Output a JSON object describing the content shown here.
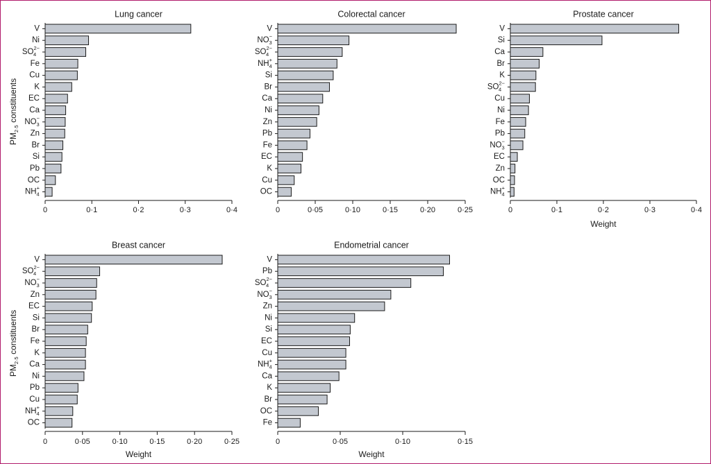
{
  "axis_label_y": "PM2·5 constituents",
  "chart_data": [
    {
      "type": "bar",
      "orientation": "horizontal",
      "title": "Lung cancer",
      "categories": [
        "V",
        "Ni",
        "SO₄²⁻",
        "Fe",
        "Cu",
        "K",
        "EC",
        "Ca",
        "NO₃⁻",
        "Zn",
        "Br",
        "Si",
        "Pb",
        "OC",
        "NH₄⁺"
      ],
      "values": [
        0.312,
        0.093,
        0.087,
        0.07,
        0.069,
        0.057,
        0.048,
        0.044,
        0.043,
        0.042,
        0.038,
        0.036,
        0.034,
        0.022,
        0.015
      ],
      "xlim": [
        0,
        0.4
      ],
      "xticks": [
        "0",
        "0·1",
        "0·2",
        "0·3",
        "0·4"
      ],
      "xlabel": "",
      "ylabel": "PM2·5 constituents"
    },
    {
      "type": "bar",
      "orientation": "horizontal",
      "title": "Colorectal cancer",
      "categories": [
        "V",
        "NO₃⁻",
        "SO₄²⁻",
        "NH₄⁺",
        "Si",
        "Br",
        "Ca",
        "Ni",
        "Zn",
        "Pb",
        "Fe",
        "EC",
        "K",
        "Cu",
        "OC"
      ],
      "values": [
        0.238,
        0.095,
        0.086,
        0.079,
        0.074,
        0.069,
        0.06,
        0.055,
        0.052,
        0.043,
        0.039,
        0.033,
        0.031,
        0.022,
        0.018
      ],
      "xlim": [
        0,
        0.25
      ],
      "xticks": [
        "0",
        "0·05",
        "0·10",
        "0·15",
        "0·20",
        "0·25"
      ],
      "xlabel": "",
      "ylabel": ""
    },
    {
      "type": "bar",
      "orientation": "horizontal",
      "title": "Prostate cancer",
      "categories": [
        "V",
        "Si",
        "Ca",
        "Br",
        "K",
        "SO₄²⁻",
        "Cu",
        "Ni",
        "Fe",
        "Pb",
        "NO₃⁻",
        "EC",
        "Zn",
        "OC",
        "NH₄⁺"
      ],
      "values": [
        0.362,
        0.197,
        0.07,
        0.062,
        0.055,
        0.054,
        0.041,
        0.039,
        0.033,
        0.031,
        0.027,
        0.015,
        0.01,
        0.009,
        0.008
      ],
      "xlim": [
        0,
        0.4
      ],
      "xticks": [
        "0",
        "0·1",
        "0·2",
        "0·3",
        "0·4"
      ],
      "xlabel": "Weight",
      "ylabel": ""
    },
    {
      "type": "bar",
      "orientation": "horizontal",
      "title": "Breast cancer",
      "categories": [
        "V",
        "SO₄²⁻",
        "NO₃⁻",
        "Zn",
        "EC",
        "Si",
        "Br",
        "Fe",
        "K",
        "Ca",
        "Ni",
        "Pb",
        "Cu",
        "NH₄⁺",
        "OC"
      ],
      "values": [
        0.237,
        0.073,
        0.069,
        0.068,
        0.063,
        0.062,
        0.057,
        0.055,
        0.054,
        0.054,
        0.052,
        0.044,
        0.043,
        0.037,
        0.036
      ],
      "xlim": [
        0,
        0.25
      ],
      "xticks": [
        "0",
        "0·05",
        "0·10",
        "0·15",
        "0·20",
        "0·25"
      ],
      "xlabel": "Weight",
      "ylabel": "PM2·5 constituents"
    },
    {
      "type": "bar",
      "orientation": "horizontal",
      "title": "Endometrial cancer",
      "categories": [
        "V",
        "Pb",
        "SO₄²⁻",
        "NO₃⁻",
        "Zn",
        "Ni",
        "Si",
        "EC",
        "Cu",
        "NH₄⁺",
        "Ca",
        "K",
        "Br",
        "OC",
        "Fe"
      ],
      "values": [
        0.1375,
        0.1325,
        0.1065,
        0.0905,
        0.0855,
        0.0615,
        0.058,
        0.0575,
        0.0545,
        0.0545,
        0.049,
        0.042,
        0.0395,
        0.0325,
        0.018
      ],
      "xlim": [
        0,
        0.15
      ],
      "xticks": [
        "0",
        "0·05",
        "0·10",
        "0·15"
      ],
      "xlabel": "Weight",
      "ylabel": ""
    }
  ],
  "colors": {
    "bar_fill": "#c3c8d0",
    "bar_stroke": "#1a1a1a",
    "frame_border": "#b01a6a"
  }
}
